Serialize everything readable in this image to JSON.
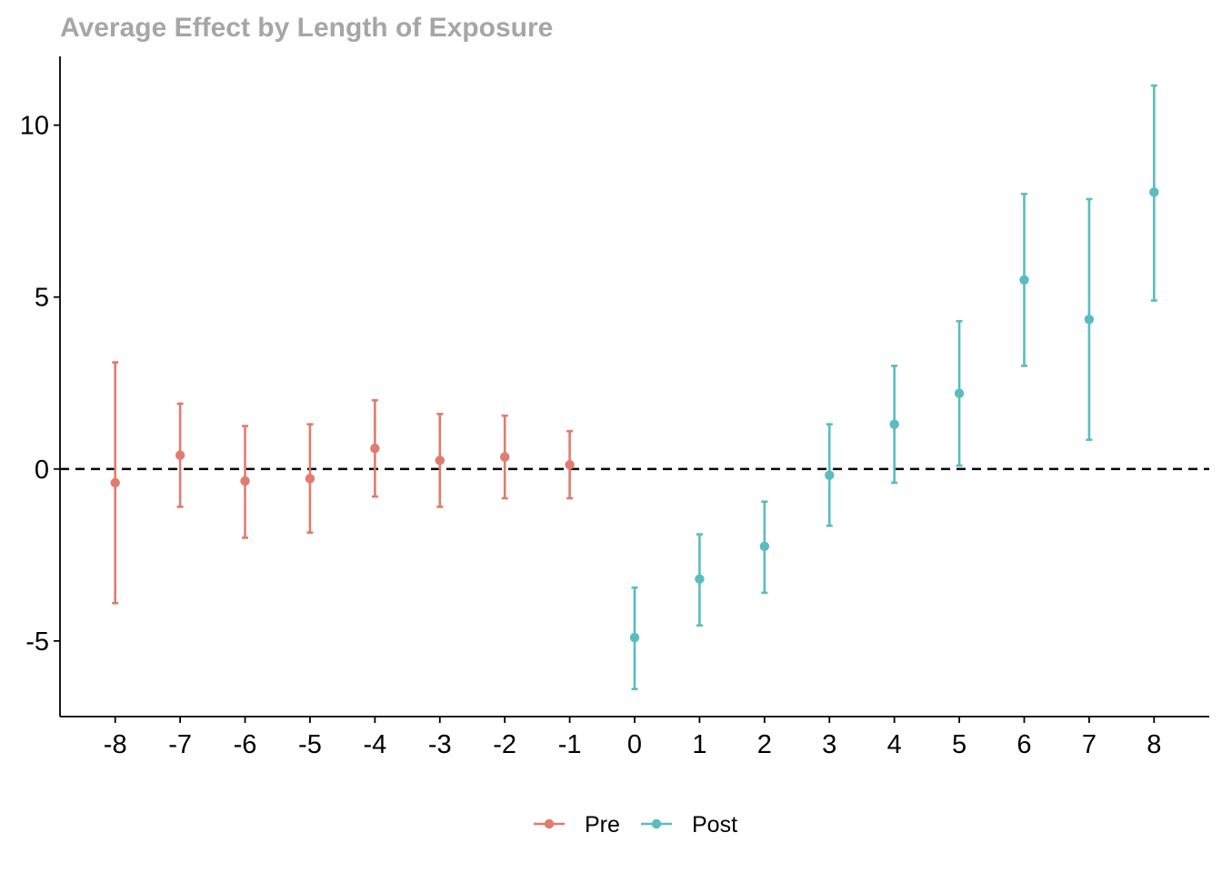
{
  "chart_data": {
    "type": "scatter",
    "title": "Average Effect by Length of Exposure",
    "xlabel": "",
    "ylabel": "",
    "x_ticks": [
      "-8",
      "-7",
      "-6",
      "-5",
      "-4",
      "-3",
      "-2",
      "-1",
      "0",
      "1",
      "2",
      "3",
      "4",
      "5",
      "6",
      "7",
      "8"
    ],
    "y_ticks": [
      {
        "value": 10,
        "label": "10"
      },
      {
        "value": 5,
        "label": "5"
      },
      {
        "value": 0,
        "label": "0"
      },
      {
        "value": -5,
        "label": "-5"
      }
    ],
    "xlim": [
      -8.85,
      8.85
    ],
    "ylim": [
      -7.2,
      12.0
    ],
    "reference_line": {
      "y": 0,
      "style": "dashed",
      "color": "#000000"
    },
    "grid": false,
    "legend": {
      "position": "bottom"
    },
    "series": [
      {
        "name": "Pre",
        "color": "#E07B6F",
        "points": [
          {
            "x": -8,
            "y": -0.4,
            "lo": -3.9,
            "hi": 3.1
          },
          {
            "x": -7,
            "y": 0.4,
            "lo": -1.1,
            "hi": 1.9
          },
          {
            "x": -6,
            "y": -0.35,
            "lo": -2.0,
            "hi": 1.25
          },
          {
            "x": -5,
            "y": -0.28,
            "lo": -1.85,
            "hi": 1.3
          },
          {
            "x": -4,
            "y": 0.6,
            "lo": -0.8,
            "hi": 2.0
          },
          {
            "x": -3,
            "y": 0.25,
            "lo": -1.1,
            "hi": 1.6
          },
          {
            "x": -2,
            "y": 0.35,
            "lo": -0.85,
            "hi": 1.55
          },
          {
            "x": -1,
            "y": 0.12,
            "lo": -0.85,
            "hi": 1.1
          }
        ]
      },
      {
        "name": "Post",
        "color": "#5BBCBF",
        "points": [
          {
            "x": 0,
            "y": -4.9,
            "lo": -6.4,
            "hi": -3.45
          },
          {
            "x": 1,
            "y": -3.2,
            "lo": -4.55,
            "hi": -1.9
          },
          {
            "x": 2,
            "y": -2.25,
            "lo": -3.6,
            "hi": -0.95
          },
          {
            "x": 3,
            "y": -0.18,
            "lo": -1.65,
            "hi": 1.3
          },
          {
            "x": 4,
            "y": 1.3,
            "lo": -0.4,
            "hi": 3.0
          },
          {
            "x": 5,
            "y": 2.2,
            "lo": 0.1,
            "hi": 4.3
          },
          {
            "x": 6,
            "y": 5.5,
            "lo": 3.0,
            "hi": 8.0
          },
          {
            "x": 7,
            "y": 4.35,
            "lo": 0.85,
            "hi": 7.85
          },
          {
            "x": 8,
            "y": 8.05,
            "lo": 4.9,
            "hi": 11.15
          }
        ]
      }
    ]
  }
}
